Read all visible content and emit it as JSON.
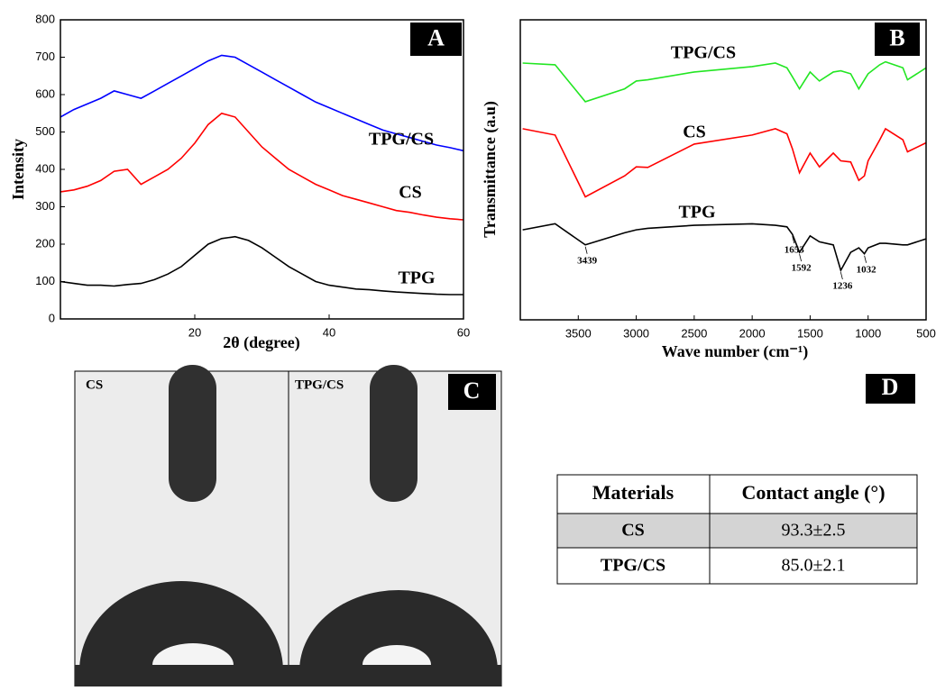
{
  "chart_data": [
    {
      "type": "line",
      "panel_label": "A",
      "x_label": "2θ (degree)",
      "y_label": "Intensity",
      "xlim": [
        0,
        60
      ],
      "xticks": [
        20,
        40,
        60
      ],
      "ylim": [
        0,
        800
      ],
      "yticks": [
        0,
        100,
        200,
        300,
        400,
        500,
        600,
        700,
        800
      ],
      "x": [
        0,
        2,
        4,
        6,
        8,
        10,
        12,
        14,
        16,
        18,
        20,
        22,
        24,
        26,
        28,
        30,
        32,
        34,
        36,
        38,
        40,
        42,
        44,
        46,
        48,
        50,
        52,
        54,
        56,
        58,
        60
      ],
      "series": [
        {
          "name": "TPG/CS",
          "color": "#0000ff",
          "values": [
            540,
            560,
            575,
            590,
            610,
            600,
            590,
            610,
            630,
            650,
            670,
            690,
            705,
            700,
            680,
            660,
            640,
            620,
            600,
            580,
            565,
            550,
            535,
            520,
            505,
            495,
            485,
            475,
            465,
            458,
            450
          ]
        },
        {
          "name": "CS",
          "color": "#ff0000",
          "values": [
            340,
            345,
            355,
            370,
            395,
            400,
            360,
            380,
            400,
            430,
            470,
            520,
            550,
            540,
            500,
            460,
            430,
            400,
            380,
            360,
            345,
            330,
            320,
            310,
            300,
            290,
            285,
            278,
            272,
            268,
            265
          ]
        },
        {
          "name": "TPG",
          "color": "#000000",
          "values": [
            100,
            95,
            90,
            90,
            88,
            92,
            95,
            105,
            120,
            140,
            170,
            200,
            215,
            220,
            210,
            190,
            165,
            140,
            120,
            100,
            90,
            85,
            80,
            78,
            75,
            72,
            70,
            68,
            66,
            65,
            65
          ]
        }
      ]
    },
    {
      "type": "line",
      "panel_label": "B",
      "x_label": "Wave number (cm⁻¹)",
      "y_label": "Transmittance (a.u)",
      "xlim": [
        4000,
        500
      ],
      "xticks": [
        3500,
        3000,
        2500,
        2000,
        1500,
        1000,
        500
      ],
      "ylim": [
        0,
        100
      ],
      "x": [
        3980,
        3700,
        3439,
        3100,
        3000,
        2900,
        2500,
        2000,
        1800,
        1700,
        1653,
        1592,
        1500,
        1420,
        1300,
        1236,
        1150,
        1080,
        1032,
        1000,
        900,
        850,
        700,
        660,
        500
      ],
      "series": [
        {
          "name": "TPG/CS",
          "color": "#22e622",
          "values": [
            85.6,
            85,
            72.7,
            77,
            79.6,
            80,
            82.6,
            84.4,
            85.6,
            84,
            81,
            77,
            82.6,
            79.6,
            82.6,
            83,
            82,
            77,
            80,
            82,
            85,
            86,
            84,
            80,
            84
          ]
        },
        {
          "name": "CS",
          "color": "#ff0000",
          "values": [
            63.7,
            61.6,
            41,
            48,
            51,
            50.8,
            58.6,
            61.6,
            63.7,
            62,
            57,
            49,
            55.6,
            51,
            55.6,
            53,
            52.6,
            46.5,
            48,
            53,
            60,
            63.7,
            60,
            56,
            59
          ]
        },
        {
          "name": "TPG",
          "color": "#000000",
          "values": [
            30,
            32,
            25,
            29,
            30,
            30.5,
            31.5,
            32,
            31.5,
            31,
            28.5,
            22.5,
            28,
            26,
            25,
            16.5,
            22.5,
            24,
            22,
            24,
            25.5,
            25.5,
            25,
            25,
            27
          ]
        }
      ],
      "peak_labels": [
        3439,
        1653,
        1592,
        1236,
        1032
      ]
    }
  ],
  "photo": {
    "panel_label": "C",
    "labels": [
      "CS",
      "TPG/CS"
    ]
  },
  "table": {
    "panel_label": "D",
    "headers": [
      "Materials",
      "Contact angle (°)"
    ],
    "rows": [
      [
        "CS",
        "93.3±2.5"
      ],
      [
        "TPG/CS",
        "85.0±2.1"
      ]
    ]
  }
}
